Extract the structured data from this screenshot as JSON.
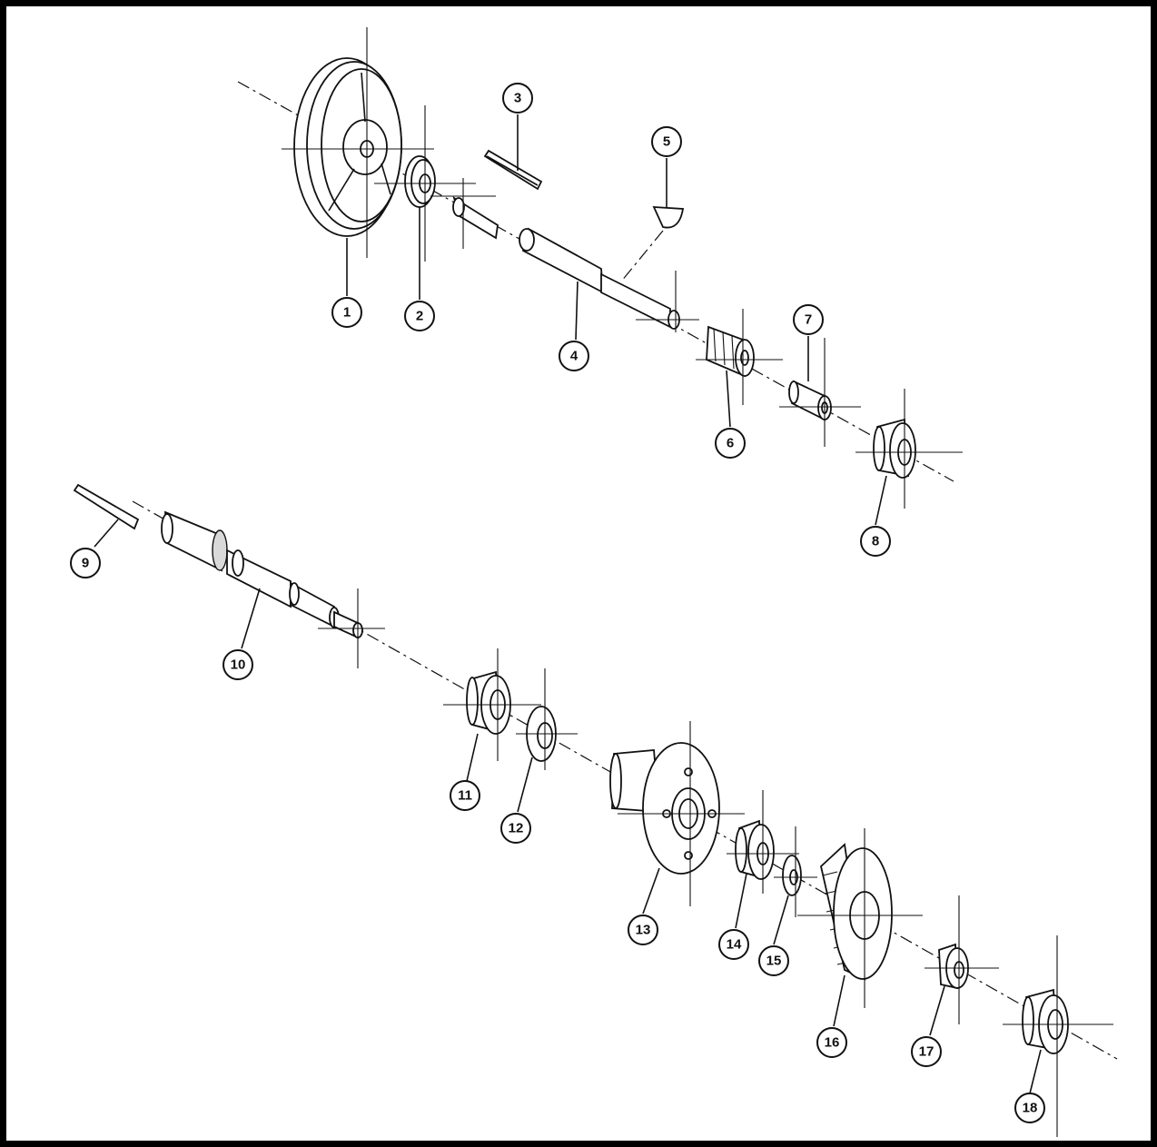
{
  "colors": {
    "frame": "#000000",
    "ink": "#111111",
    "background": "#ffffff"
  },
  "callouts": [
    {
      "id": "c1",
      "label": "1"
    },
    {
      "id": "c2",
      "label": "2"
    },
    {
      "id": "c3",
      "label": "3"
    },
    {
      "id": "c4",
      "label": "4"
    },
    {
      "id": "c5",
      "label": "5"
    },
    {
      "id": "c6",
      "label": "6"
    },
    {
      "id": "c7",
      "label": "7"
    },
    {
      "id": "c8",
      "label": "8"
    },
    {
      "id": "c9",
      "label": "9"
    },
    {
      "id": "c10",
      "label": "10"
    },
    {
      "id": "c11",
      "label": "11"
    },
    {
      "id": "c12",
      "label": "12"
    },
    {
      "id": "c13",
      "label": "13"
    },
    {
      "id": "c14",
      "label": "14"
    },
    {
      "id": "c15",
      "label": "15"
    },
    {
      "id": "c16",
      "label": "16"
    },
    {
      "id": "c17",
      "label": "17"
    },
    {
      "id": "c18",
      "label": "18"
    }
  ]
}
